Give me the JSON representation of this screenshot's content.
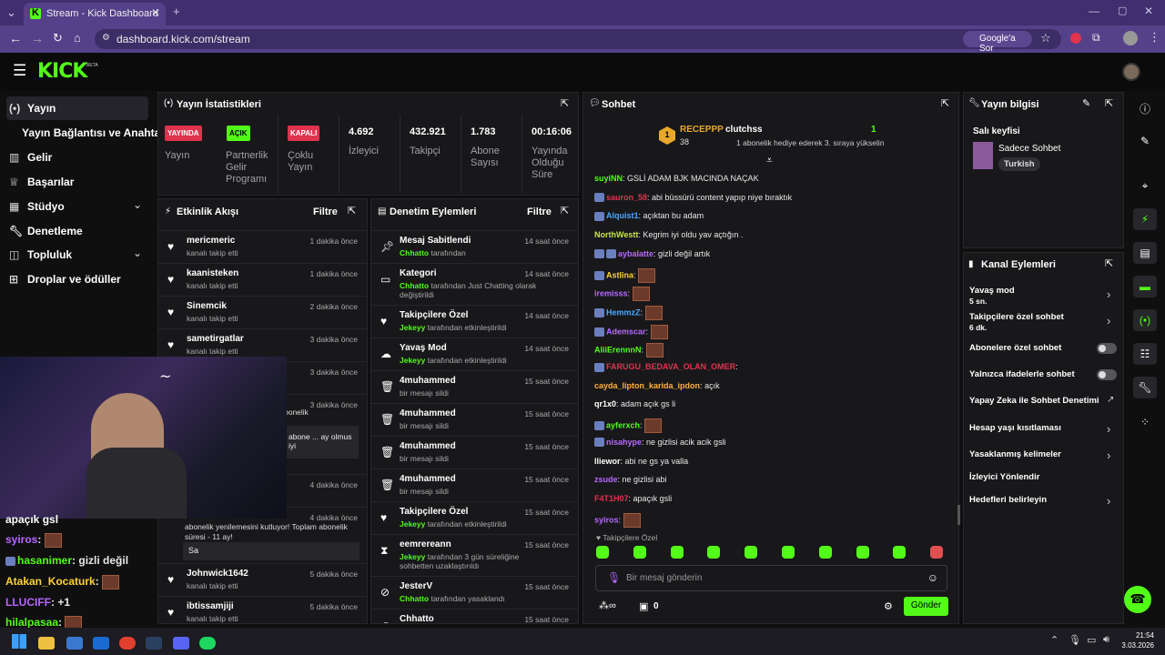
{
  "browser": {
    "tab_title": "Stream - Kick Dashboard",
    "url": "dashboard.kick.com/stream",
    "google_btn": "Google'a Sor"
  },
  "header": {
    "logo": "KICK",
    "beta": "BETA"
  },
  "sidebar": {
    "items": [
      {
        "label": "Yayın",
        "icon": "broadcast-icon"
      },
      {
        "label": "Yayın Bağlantısı ve Anahtarı",
        "icon": ""
      },
      {
        "label": "Gelir",
        "icon": "chart-icon"
      },
      {
        "label": "Başarılar",
        "icon": "trophy-icon"
      },
      {
        "label": "Stüdyo",
        "icon": "studio-icon"
      },
      {
        "label": "Denetleme",
        "icon": "wrench-icon"
      },
      {
        "label": "Topluluk",
        "icon": "community-icon"
      },
      {
        "label": "Droplar ve ödüller",
        "icon": "gift-icon"
      }
    ]
  },
  "stats": {
    "title": "Yayın İstatistikleri",
    "badges": [
      {
        "value": "YAYINDA",
        "label": "Yayın"
      },
      {
        "value": "AÇIK",
        "label": "Partnerlik Gelir Programı"
      },
      {
        "value": "KAPALI",
        "label": "Çoklu Yayın"
      }
    ],
    "numbers": [
      {
        "value": "4.692",
        "label": "İzleyici"
      },
      {
        "value": "432.921",
        "label": "Takipçi"
      },
      {
        "value": "1.783",
        "label": "Abone Sayısı"
      },
      {
        "value": "00:16:06",
        "label": "Yayında Olduğu Süre"
      }
    ]
  },
  "activity": {
    "title": "Etkinlik Akışı",
    "filter": "Filtre",
    "items": [
      {
        "name": "mericmeric",
        "desc": "kanalı takip etti",
        "time": "1 dakika önce"
      },
      {
        "name": "kaanisteken",
        "desc": "kanalı takip etti",
        "time": "1 dakika önce"
      },
      {
        "name": "Sinemcik",
        "desc": "kanalı takip etti",
        "time": "2 dakika önce"
      },
      {
        "name": "sametirgatlar",
        "desc": "kanalı takip etti",
        "time": "3 dakika önce"
      },
      {
        "name": "",
        "desc": "",
        "time": "3 dakika önce"
      },
      {
        "name": "",
        "desc": "",
        "time": "3 dakika önce"
      },
      {
        "name": "",
        "desc": "",
        "time": "4 dakika önce"
      },
      {
        "name": "",
        "desc": "",
        "time": "4 dakika önce"
      },
      {
        "name": "Johnwick1642",
        "desc": "kanalı takip etti",
        "time": "5 dakika önce"
      },
      {
        "name": "ibtissamjiji",
        "desc": "kanalı takip etti",
        "time": "5 dakika önce"
      }
    ],
    "sub1": "abone ... ay olmus iyi",
    "sub2": "abonelik yenilemesini kutluyor! Toplam abonelik süresi - 11 ay!",
    "sub2_msg": "Sa",
    "partial": "bonelik"
  },
  "moderation": {
    "title": "Denetim Eylemleri",
    "filter": "Filtre",
    "items": [
      {
        "name": "Mesaj Sabitlendi",
        "actor": "Chhatto",
        "desc": "tarafından",
        "time": "14 saat önce",
        "icon": "pin-icon"
      },
      {
        "name": "Kategori",
        "actor": "Chhatto",
        "desc": "tarafından Just Chatting olarak değiştirildi",
        "time": "14 saat önce",
        "icon": "category-icon"
      },
      {
        "name": "Takipçilere Özel",
        "actor": "Jekeyy",
        "desc": "tarafından etkinleştirildi",
        "time": "14 saat önce",
        "icon": "heart-icon"
      },
      {
        "name": "Yavaş Mod",
        "actor": "Jekeyy",
        "desc": "tarafından etkinleştirildi",
        "time": "14 saat önce",
        "icon": "snail-icon"
      },
      {
        "name": "4muhammed",
        "actor": "",
        "desc": "bir mesajı sildi",
        "time": "15 saat önce",
        "icon": "trash-icon"
      },
      {
        "name": "4muhammed",
        "actor": "",
        "desc": "bir mesajı sildi",
        "time": "15 saat önce",
        "icon": "trash-icon"
      },
      {
        "name": "4muhammed",
        "actor": "",
        "desc": "bir mesajı sildi",
        "time": "15 saat önce",
        "icon": "trash-icon"
      },
      {
        "name": "4muhammed",
        "actor": "",
        "desc": "bir mesajı sildi",
        "time": "15 saat önce",
        "icon": "trash-icon"
      },
      {
        "name": "Takipçilere Özel",
        "actor": "Jekeyy",
        "desc": "tarafından etkinleştirildi",
        "time": "15 saat önce",
        "icon": "heart-icon"
      },
      {
        "name": "eemrereann",
        "actor": "Jekeyy",
        "desc": "tarafından 3 gün süreliğine sohbetten uzaklaştırıldı",
        "time": "15 saat önce",
        "icon": "hourglass-icon"
      },
      {
        "name": "JesterV",
        "actor": "Chhatto",
        "desc": "tarafından yasaklandı",
        "time": "15 saat önce",
        "icon": "ban-icon"
      },
      {
        "name": "Chhatto",
        "actor": "",
        "desc": "",
        "time": "15 saat önce",
        "icon": "user-icon"
      }
    ]
  },
  "chat": {
    "title": "Sohbet",
    "top1": {
      "name": "RECEPPP",
      "count": "38"
    },
    "top2": {
      "name": "clutchss",
      "count": "1",
      "desc": "1 abonelik hediye ederek 3. sıraya yükselin"
    },
    "messages": [
      {
        "user": "suyiNN",
        "color": "#53fc18",
        "text": "GSLİ ADAM BJK MACINDA NAÇAK"
      },
      {
        "user": "sauron_58",
        "color": "#e0334e",
        "text": "abi büssürü content yapıp niye bıraktık"
      },
      {
        "user": "Alquist1",
        "color": "#4aa8ff",
        "text": "açıktan bu adam"
      },
      {
        "user": "NorthWestt",
        "color": "#c8e64a",
        "text": "Kegrim iyi oldu yav açtığın ."
      },
      {
        "user": "aybalatte",
        "color": "#b768ff",
        "text": "gizli değil artık"
      },
      {
        "user": "Astlina",
        "color": "#ffd23a",
        "text": ""
      },
      {
        "user": "iremisss",
        "color": "#b768ff",
        "text": ""
      },
      {
        "user": "HemmzZ",
        "color": "#4aa8ff",
        "text": ""
      },
      {
        "user": "Ademscar",
        "color": "#b768ff",
        "text": ""
      },
      {
        "user": "AliiErennnN",
        "color": "#53fc18",
        "text": ""
      },
      {
        "user": "FARUGU_BEDAVA_OLAN_OMER",
        "color": "#e0334e",
        "text": ""
      },
      {
        "user": "cayda_lipton_karida_ipdon",
        "color": "#ffb13a",
        "text": "açık"
      },
      {
        "user": "qr1x0",
        "color": "#ffffff",
        "text": "adam açık gs li"
      },
      {
        "user": "ayferxch",
        "color": "#53fc18",
        "text": ""
      },
      {
        "user": "nisahype",
        "color": "#b768ff",
        "text": "ne gizlisi acik acik gsli"
      },
      {
        "user": "lliewor",
        "color": "#ffffff",
        "text": "abi ne gs ya valla"
      },
      {
        "user": "zsude",
        "color": "#b768ff",
        "text": "ne gizlisi abi"
      },
      {
        "user": "F4T1H07",
        "color": "#e0334e",
        "text": "apaçık gsli"
      },
      {
        "user": "syiros",
        "color": "#b768ff",
        "text": ""
      }
    ],
    "mode": "Takipçilere Özel",
    "placeholder": "Bir mesaj gönderin",
    "points": "0",
    "send": "Gönder"
  },
  "info": {
    "title": "Yayın bilgisi",
    "stream_title": "Salı keyfisi",
    "category": "Sadece Sohbet",
    "tag": "Turkish"
  },
  "channel": {
    "title": "Kanal Eylemleri",
    "items": [
      {
        "label": "Yavaş mod",
        "sub": "5 sn.",
        "control": "chevron"
      },
      {
        "label": "Takipçilere özel sohbet",
        "sub": "6 dk.",
        "control": "chevron"
      },
      {
        "label": "Abonelere özel sohbet",
        "sub": "",
        "control": "toggle"
      },
      {
        "label": "Yalnızca ifadelerle sohbet",
        "sub": "",
        "control": "toggle"
      },
      {
        "label": "Yapay Zeka ile Sohbet Denetimi",
        "sub": "",
        "control": "external"
      },
      {
        "label": "Hesap yaşı kısıtlaması",
        "sub": "",
        "control": "chevron"
      },
      {
        "label": "Yasaklanmış kelimeler",
        "sub": "",
        "control": "chevron"
      },
      {
        "label": "İzleyici Yönlendir",
        "sub": "",
        "control": "none"
      },
      {
        "label": "Hedefleri belirleyin",
        "sub": "",
        "control": "chevron"
      }
    ]
  },
  "overlay_chat": [
    {
      "user": "syiros",
      "color": "#b768ff",
      "text": ":"
    },
    {
      "user": "hasanimer",
      "color": "#53fc18",
      "text": ": gizli değil"
    },
    {
      "user": "Atakan_Kocaturk",
      "color": "#ffd23a",
      "text": ":"
    },
    {
      "user": "LLUCIFF",
      "color": "#b768ff",
      "text": ": +1"
    },
    {
      "user": "hilalpasaa",
      "color": "#53fc18",
      "text": ":"
    }
  ],
  "overlay_partial": "apaçık gsl",
  "taskbar": {
    "time": "21:54",
    "date": "3.03.2026"
  }
}
